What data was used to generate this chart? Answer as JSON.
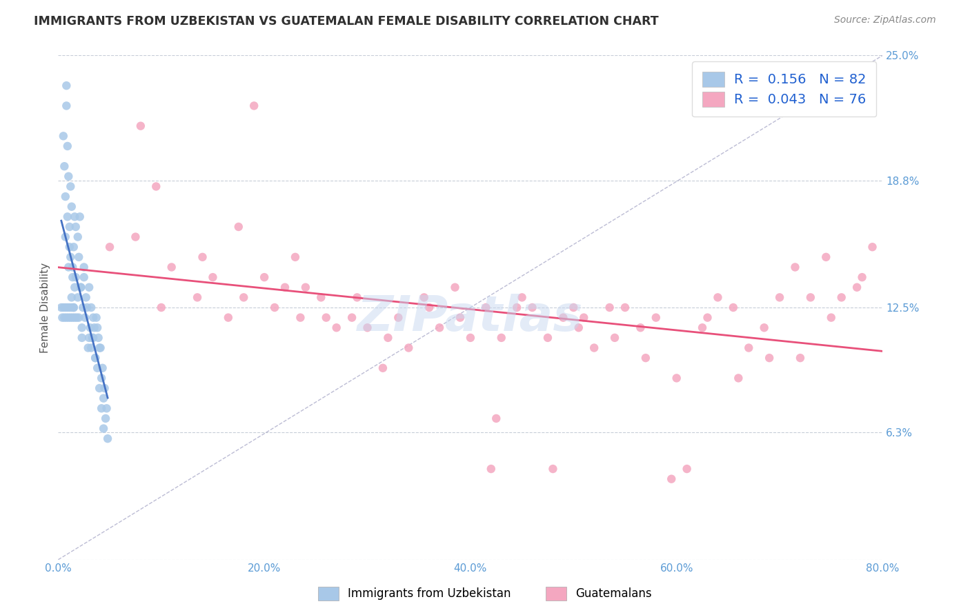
{
  "title": "IMMIGRANTS FROM UZBEKISTAN VS GUATEMALAN FEMALE DISABILITY CORRELATION CHART",
  "source": "Source: ZipAtlas.com",
  "ylabel": "Female Disability",
  "xlim": [
    0.0,
    80.0
  ],
  "ylim": [
    0.0,
    25.0
  ],
  "yticks": [
    0.0,
    6.3,
    12.5,
    18.8,
    25.0
  ],
  "ytick_labels": [
    "",
    "6.3%",
    "12.5%",
    "18.8%",
    "25.0%"
  ],
  "xticks": [
    0.0,
    20.0,
    40.0,
    60.0,
    80.0
  ],
  "xtick_labels": [
    "0.0%",
    "20.0%",
    "40.0%",
    "60.0%",
    "80.0%"
  ],
  "series1_label": "Immigrants from Uzbekistan",
  "series1_R": 0.156,
  "series1_N": 82,
  "series1_color": "#a8c8e8",
  "series1_trend_color": "#4472c4",
  "series2_label": "Guatemalans",
  "series2_R": 0.043,
  "series2_N": 76,
  "series2_color": "#f4a7c0",
  "series2_trend_color": "#e8507a",
  "legend_R_color": "#2060d0",
  "background_color": "#ffffff",
  "grid_color": "#b0b8c8",
  "title_color": "#303030",
  "tick_color": "#5b9bd5",
  "ref_line_color": "#9090b8",
  "series1_x": [
    0.8,
    0.5,
    0.6,
    0.7,
    0.9,
    0.7,
    0.8,
    1.0,
    1.1,
    0.9,
    1.0,
    1.2,
    1.3,
    1.1,
    1.2,
    1.4,
    1.3,
    1.5,
    1.6,
    1.4,
    1.5,
    1.7,
    1.6,
    1.8,
    1.9,
    1.7,
    2.0,
    1.9,
    2.1,
    2.2,
    2.0,
    2.3,
    2.4,
    2.2,
    2.5,
    2.3,
    2.6,
    2.7,
    2.5,
    2.8,
    3.0,
    2.9,
    3.1,
    3.2,
    3.0,
    3.3,
    3.4,
    3.2,
    3.5,
    3.6,
    3.4,
    3.7,
    3.8,
    3.6,
    3.9,
    4.0,
    3.8,
    4.1,
    4.2,
    4.0,
    4.3,
    4.4,
    4.2,
    4.5,
    4.6,
    4.4,
    4.7,
    4.8,
    0.3,
    0.4,
    0.5,
    0.6,
    0.7,
    0.8,
    0.9,
    1.0,
    1.1,
    1.2,
    1.3,
    1.4,
    1.5,
    1.6
  ],
  "series1_y": [
    23.5,
    21.0,
    19.5,
    18.0,
    17.0,
    16.0,
    22.5,
    14.5,
    15.5,
    20.5,
    19.0,
    18.5,
    17.5,
    16.5,
    15.0,
    14.0,
    13.0,
    12.5,
    13.5,
    14.5,
    15.5,
    16.5,
    17.0,
    12.0,
    13.0,
    14.0,
    15.0,
    16.0,
    17.0,
    13.5,
    12.0,
    11.5,
    12.5,
    13.5,
    14.5,
    11.0,
    12.0,
    13.0,
    14.0,
    12.5,
    11.0,
    10.5,
    11.5,
    12.5,
    13.5,
    11.0,
    12.0,
    10.5,
    11.5,
    10.0,
    11.0,
    12.0,
    11.5,
    10.0,
    11.0,
    10.5,
    9.5,
    10.5,
    9.0,
    8.5,
    9.5,
    8.0,
    7.5,
    8.5,
    7.0,
    6.5,
    7.5,
    6.0,
    12.5,
    12.0,
    12.5,
    12.0,
    12.5,
    12.0,
    12.5,
    12.0,
    12.5,
    12.0,
    12.5,
    12.0,
    12.5,
    12.0
  ],
  "series2_x": [
    5.0,
    7.5,
    10.0,
    11.0,
    13.5,
    8.0,
    15.0,
    16.5,
    9.5,
    18.0,
    19.0,
    14.0,
    21.0,
    22.0,
    17.5,
    23.5,
    24.0,
    20.0,
    25.5,
    26.0,
    27.0,
    23.0,
    28.5,
    29.0,
    30.0,
    31.5,
    32.0,
    33.0,
    34.0,
    35.5,
    36.0,
    37.0,
    38.5,
    39.0,
    40.0,
    41.5,
    42.0,
    43.0,
    44.5,
    45.0,
    46.0,
    47.5,
    48.0,
    49.0,
    50.5,
    51.0,
    52.0,
    53.5,
    54.0,
    55.0,
    56.5,
    57.0,
    58.0,
    59.5,
    50.0,
    61.0,
    62.5,
    63.0,
    64.0,
    65.5,
    66.0,
    67.0,
    68.5,
    69.0,
    70.0,
    71.5,
    72.0,
    73.0,
    74.5,
    75.0,
    76.0,
    77.5,
    78.0,
    79.0,
    60.0,
    42.5
  ],
  "series2_y": [
    15.5,
    16.0,
    12.5,
    14.5,
    13.0,
    21.5,
    14.0,
    12.0,
    18.5,
    13.0,
    22.5,
    15.0,
    12.5,
    13.5,
    16.5,
    12.0,
    13.5,
    14.0,
    13.0,
    12.0,
    11.5,
    15.0,
    12.0,
    13.0,
    11.5,
    9.5,
    11.0,
    12.0,
    10.5,
    13.0,
    12.5,
    11.5,
    13.5,
    12.0,
    11.0,
    12.5,
    4.5,
    11.0,
    12.5,
    13.0,
    12.5,
    11.0,
    4.5,
    12.0,
    11.5,
    12.0,
    10.5,
    12.5,
    11.0,
    12.5,
    11.5,
    10.0,
    12.0,
    4.0,
    12.5,
    4.5,
    11.5,
    12.0,
    13.0,
    12.5,
    9.0,
    10.5,
    11.5,
    10.0,
    13.0,
    14.5,
    10.0,
    13.0,
    15.0,
    12.0,
    13.0,
    13.5,
    14.0,
    15.5,
    9.0,
    7.0
  ],
  "watermark": "ZIPatlas",
  "watermark_color": "#c8d8f0"
}
